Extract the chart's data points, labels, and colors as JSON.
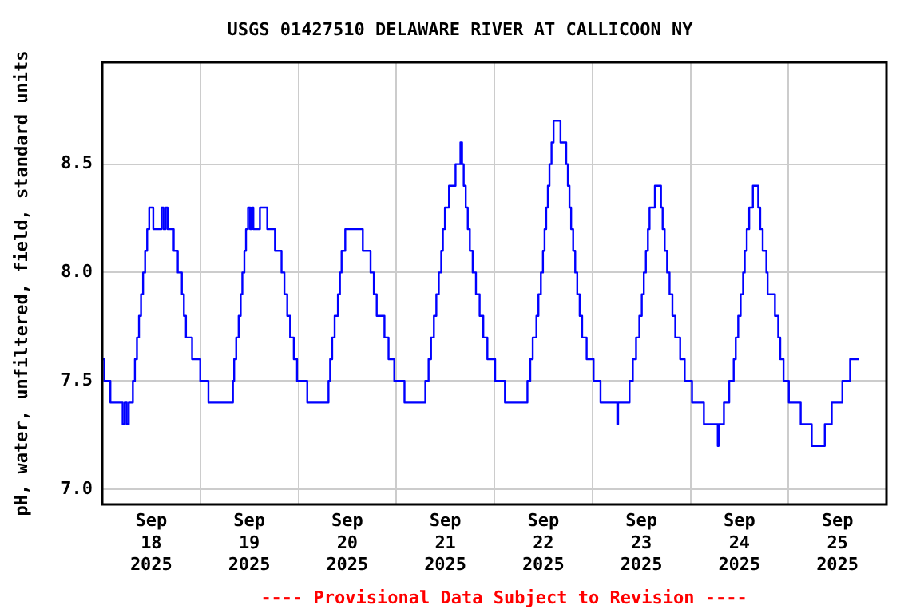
{
  "chart_data": {
    "type": "step",
    "title": "USGS 01427510 DELAWARE RIVER AT CALLICOON NY",
    "ylabel": "pH, water, unfiltered, field, standard units",
    "annotations": [
      "---- Provisional Data Subject to Revision ----"
    ],
    "xlim": [
      "2025-09-18T00:00",
      "2025-09-26T00:00"
    ],
    "xticks": [
      {
        "value": "2025-09-18T00:00",
        "label": null
      },
      {
        "value": "2025-09-18T12:00",
        "label": "Sep 18 2025"
      },
      {
        "value": "2025-09-19T00:00",
        "label": null
      },
      {
        "value": "2025-09-19T12:00",
        "label": "Sep 19 2025"
      },
      {
        "value": "2025-09-20T00:00",
        "label": null
      },
      {
        "value": "2025-09-20T12:00",
        "label": "Sep 20 2025"
      },
      {
        "value": "2025-09-21T00:00",
        "label": null
      },
      {
        "value": "2025-09-21T12:00",
        "label": "Sep 21 2025"
      },
      {
        "value": "2025-09-22T00:00",
        "label": null
      },
      {
        "value": "2025-09-22T12:00",
        "label": "Sep 22 2025"
      },
      {
        "value": "2025-09-23T00:00",
        "label": null
      },
      {
        "value": "2025-09-23T12:00",
        "label": "Sep 23 2025"
      },
      {
        "value": "2025-09-24T00:00",
        "label": null
      },
      {
        "value": "2025-09-24T12:00",
        "label": "Sep 24 2025"
      },
      {
        "value": "2025-09-25T00:00",
        "label": null
      },
      {
        "value": "2025-09-25T12:00",
        "label": "Sep 25 2025"
      },
      {
        "value": "2025-09-26T00:00",
        "label": null
      }
    ],
    "ylim": [
      6.93,
      8.97
    ],
    "yticks": [
      {
        "value": 7,
        "label": "7.0"
      },
      {
        "value": 7.5,
        "label": "7.5"
      },
      {
        "value": 8,
        "label": "8.0"
      },
      {
        "value": 8.5,
        "label": "8.5"
      }
    ],
    "grid": true,
    "legend": false,
    "marker": "none",
    "line_style": "solid",
    "series": [
      {
        "color": "#0000ff",
        "x": [
          "2025-09-18T00:00",
          "2025-09-18T00:30",
          "2025-09-18T02:00",
          "2025-09-18T05:00",
          "2025-09-18T05:30",
          "2025-09-18T06:00",
          "2025-09-18T06:30",
          "2025-09-18T07:30",
          "2025-09-18T08:00",
          "2025-09-18T08:30",
          "2025-09-18T09:00",
          "2025-09-18T09:30",
          "2025-09-18T10:00",
          "2025-09-18T10:30",
          "2025-09-18T11:00",
          "2025-09-18T11:30",
          "2025-09-18T12:30",
          "2025-09-18T14:30",
          "2025-09-18T15:00",
          "2025-09-18T15:30",
          "2025-09-18T16:00",
          "2025-09-18T17:30",
          "2025-09-18T18:30",
          "2025-09-18T19:30",
          "2025-09-18T20:00",
          "2025-09-18T20:30",
          "2025-09-18T22:00",
          "2025-09-19T00:00",
          "2025-09-19T02:00",
          "2025-09-19T08:00",
          "2025-09-19T08:18",
          "2025-09-19T08:48",
          "2025-09-19T09:24",
          "2025-09-19T09:54",
          "2025-09-19T10:18",
          "2025-09-19T10:48",
          "2025-09-19T11:12",
          "2025-09-19T11:42",
          "2025-09-19T12:12",
          "2025-09-19T12:36",
          "2025-09-19T13:00",
          "2025-09-19T14:36",
          "2025-09-19T16:24",
          "2025-09-19T18:18",
          "2025-09-19T19:54",
          "2025-09-19T20:36",
          "2025-09-19T21:18",
          "2025-09-19T22:00",
          "2025-09-19T22:54",
          "2025-09-19T23:42",
          "2025-09-20T02:12",
          "2025-09-20T07:24",
          "2025-09-20T07:48",
          "2025-09-20T08:18",
          "2025-09-20T08:54",
          "2025-09-20T09:42",
          "2025-09-20T10:12",
          "2025-09-20T10:36",
          "2025-09-20T11:30",
          "2025-09-20T15:48",
          "2025-09-20T17:42",
          "2025-09-20T18:30",
          "2025-09-20T19:12",
          "2025-09-20T21:06",
          "2025-09-20T22:06",
          "2025-09-20T23:30",
          "2025-09-21T02:00",
          "2025-09-21T07:06",
          "2025-09-21T07:54",
          "2025-09-21T08:30",
          "2025-09-21T09:12",
          "2025-09-21T09:48",
          "2025-09-21T10:24",
          "2025-09-21T11:00",
          "2025-09-21T11:24",
          "2025-09-21T11:54",
          "2025-09-21T12:54",
          "2025-09-21T14:30",
          "2025-09-21T15:42",
          "2025-09-21T16:06",
          "2025-09-21T16:30",
          "2025-09-21T17:00",
          "2025-09-21T17:30",
          "2025-09-21T18:00",
          "2025-09-21T18:42",
          "2025-09-21T19:30",
          "2025-09-21T20:24",
          "2025-09-21T21:18",
          "2025-09-21T22:18",
          "2025-09-22T00:12",
          "2025-09-22T02:36",
          "2025-09-22T08:06",
          "2025-09-22T08:48",
          "2025-09-22T09:24",
          "2025-09-22T10:18",
          "2025-09-22T10:48",
          "2025-09-22T11:24",
          "2025-09-22T11:54",
          "2025-09-22T12:18",
          "2025-09-22T12:42",
          "2025-09-22T13:06",
          "2025-09-22T13:30",
          "2025-09-22T14:00",
          "2025-09-22T14:30",
          "2025-09-22T16:12",
          "2025-09-22T17:36",
          "2025-09-22T18:00",
          "2025-09-22T18:24",
          "2025-09-22T18:48",
          "2025-09-22T19:18",
          "2025-09-22T19:48",
          "2025-09-22T20:18",
          "2025-09-22T20:54",
          "2025-09-22T21:30",
          "2025-09-22T22:36",
          "2025-09-23T00:18",
          "2025-09-23T02:00",
          "2025-09-23T06:06",
          "2025-09-23T06:18",
          "2025-09-23T09:06",
          "2025-09-23T09:54",
          "2025-09-23T10:42",
          "2025-09-23T11:30",
          "2025-09-23T12:06",
          "2025-09-23T12:36",
          "2025-09-23T13:06",
          "2025-09-23T13:36",
          "2025-09-23T14:00",
          "2025-09-23T15:18",
          "2025-09-23T16:48",
          "2025-09-23T17:12",
          "2025-09-23T17:42",
          "2025-09-23T18:18",
          "2025-09-23T18:54",
          "2025-09-23T19:36",
          "2025-09-23T20:18",
          "2025-09-23T21:30",
          "2025-09-23T22:36",
          "2025-09-24T00:24",
          "2025-09-24T03:18",
          "2025-09-24T06:42",
          "2025-09-24T06:54",
          "2025-09-24T08:12",
          "2025-09-24T09:30",
          "2025-09-24T10:36",
          "2025-09-24T11:06",
          "2025-09-24T11:42",
          "2025-09-24T12:18",
          "2025-09-24T12:54",
          "2025-09-24T13:18",
          "2025-09-24T13:48",
          "2025-09-24T14:24",
          "2025-09-24T15:18",
          "2025-09-24T16:36",
          "2025-09-24T17:06",
          "2025-09-24T17:42",
          "2025-09-24T18:36",
          "2025-09-24T18:54",
          "2025-09-24T20:42",
          "2025-09-24T21:30",
          "2025-09-24T22:00",
          "2025-09-24T22:48",
          "2025-09-25T00:06",
          "2025-09-25T03:00",
          "2025-09-25T05:42",
          "2025-09-25T08:54",
          "2025-09-25T10:36",
          "2025-09-25T13:12",
          "2025-09-25T15:06",
          "2025-09-25T17:12"
        ],
        "values": [
          7.6,
          7.5,
          7.4,
          7.3,
          7.4,
          7.3,
          7.4,
          7.5,
          7.6,
          7.7,
          7.8,
          7.9,
          8.0,
          8.1,
          8.2,
          8.3,
          8.2,
          8.3,
          8.2,
          8.3,
          8.2,
          8.1,
          8.0,
          7.9,
          7.8,
          7.7,
          7.6,
          7.5,
          7.4,
          7.5,
          7.6,
          7.7,
          7.8,
          7.9,
          8.0,
          8.1,
          8.2,
          8.3,
          8.2,
          8.3,
          8.2,
          8.3,
          8.2,
          8.1,
          8.0,
          7.9,
          7.8,
          7.7,
          7.6,
          7.5,
          7.4,
          7.5,
          7.6,
          7.7,
          7.8,
          7.9,
          8.0,
          8.1,
          8.2,
          8.1,
          8.0,
          7.9,
          7.8,
          7.7,
          7.6,
          7.5,
          7.4,
          7.5,
          7.6,
          7.7,
          7.8,
          7.9,
          8.0,
          8.1,
          8.2,
          8.3,
          8.4,
          8.5,
          8.6,
          8.5,
          8.4,
          8.3,
          8.2,
          8.1,
          8.0,
          7.9,
          7.8,
          7.7,
          7.6,
          7.5,
          7.4,
          7.5,
          7.6,
          7.7,
          7.8,
          7.9,
          8.0,
          8.1,
          8.2,
          8.3,
          8.4,
          8.5,
          8.6,
          8.7,
          8.6,
          8.5,
          8.4,
          8.3,
          8.2,
          8.1,
          8.0,
          7.9,
          7.8,
          7.7,
          7.6,
          7.5,
          7.4,
          7.3,
          7.4,
          7.5,
          7.6,
          7.7,
          7.8,
          7.9,
          8.0,
          8.1,
          8.2,
          8.3,
          8.4,
          8.3,
          8.2,
          8.1,
          8.0,
          7.9,
          7.8,
          7.7,
          7.6,
          7.5,
          7.4,
          7.3,
          7.2,
          7.3,
          7.4,
          7.5,
          7.6,
          7.7,
          7.8,
          7.9,
          8.0,
          8.1,
          8.2,
          8.3,
          8.4,
          8.3,
          8.2,
          8.1,
          8.0,
          7.9,
          7.8,
          7.7,
          7.6,
          7.5,
          7.4,
          7.3,
          7.2,
          7.3,
          7.4,
          7.5,
          7.6,
          7.6
        ]
      }
    ]
  }
}
